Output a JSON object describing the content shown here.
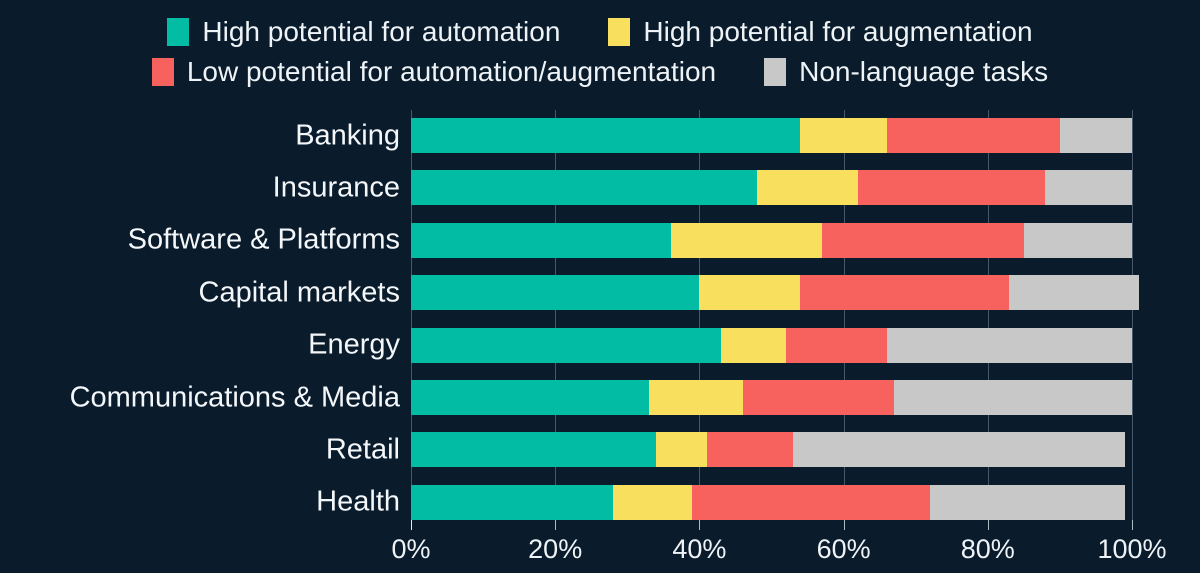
{
  "colors": {
    "background": "#0a1b2b",
    "text": "#eef3f7",
    "automation": "#02bda4",
    "augmentation": "#f9df5e",
    "low_potential": "#f7625f",
    "non_language": "#c8c8c8",
    "gridline": "rgba(160,180,200,0.40)"
  },
  "chart_data": {
    "type": "bar",
    "orientation": "horizontal",
    "stacked": true,
    "title": "",
    "xlabel": "",
    "ylabel": "",
    "xlim": [
      0,
      101
    ],
    "grid": true,
    "legend_position": "top",
    "categories": [
      "Banking",
      "Insurance",
      "Software & Platforms",
      "Capital markets",
      "Energy",
      "Communications & Media",
      "Retail",
      "Health"
    ],
    "series": [
      {
        "name": "High potential for automation",
        "color": "#02bda4",
        "values": [
          54,
          48,
          36,
          40,
          43,
          33,
          34,
          28
        ]
      },
      {
        "name": "High potential for augmentation",
        "color": "#f9df5e",
        "values": [
          12,
          14,
          21,
          14,
          9,
          13,
          7,
          11
        ]
      },
      {
        "name": "Low potential for automation/augmentation",
        "color": "#f7625f",
        "values": [
          24,
          26,
          28,
          29,
          14,
          21,
          12,
          33
        ]
      },
      {
        "name": "Non-language tasks",
        "color": "#c8c8c8",
        "values": [
          10,
          12,
          15,
          18,
          34,
          33,
          46,
          27
        ]
      }
    ],
    "x_ticks": [
      "0%",
      "20%",
      "40%",
      "60%",
      "80%",
      "100%"
    ],
    "x_tick_values": [
      0,
      20,
      40,
      60,
      80,
      100
    ]
  }
}
